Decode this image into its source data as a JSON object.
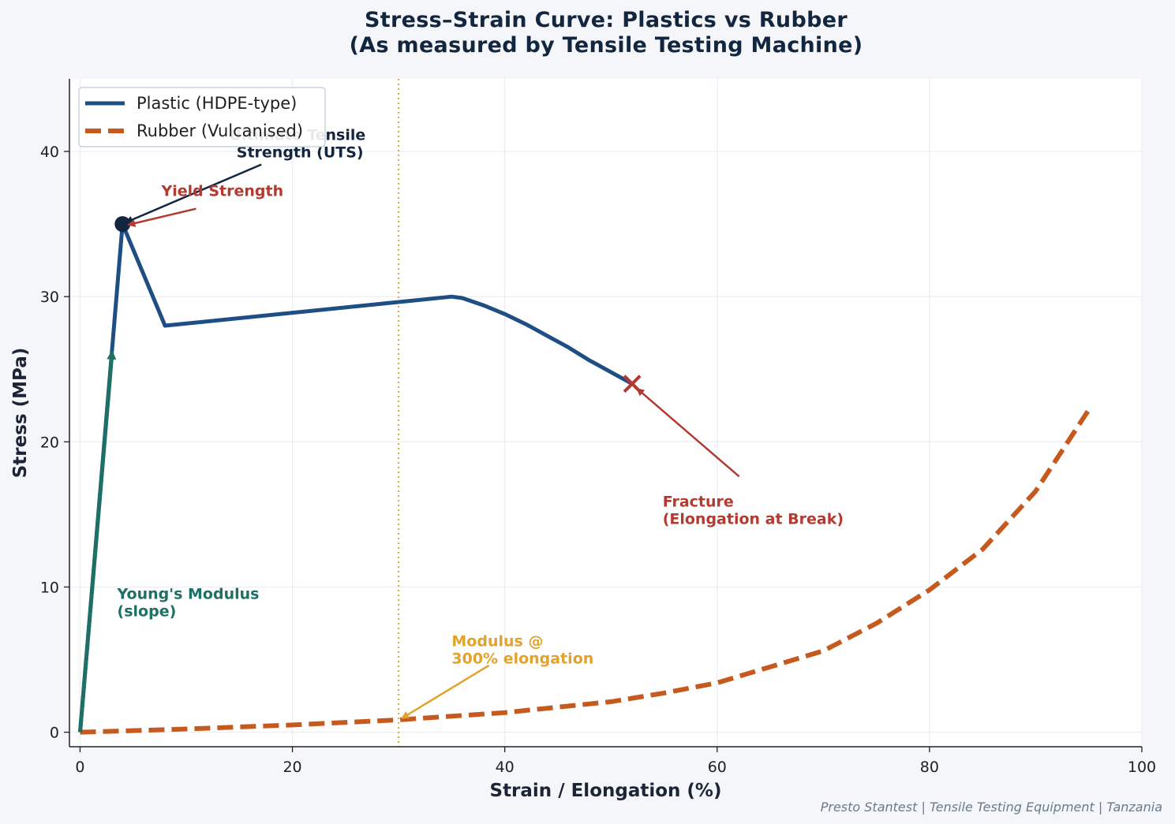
{
  "page": {
    "title_line1": "Stress–Strain Curve: Plastics vs Rubber",
    "title_line2": "(As measured by Tensile Testing Machine)",
    "footer": "Presto Stantest | Tensile Testing Equipment | Tanzania"
  },
  "chart_data": {
    "type": "line",
    "title": "Stress–Strain Curve: Plastics vs Rubber\n(As measured by Tensile Testing Machine)",
    "xlabel": "Strain / Elongation (%)",
    "ylabel": "Stress (MPa)",
    "xlim": [
      -1,
      100
    ],
    "ylim": [
      -1,
      45
    ],
    "xticks": [
      0,
      20,
      40,
      60,
      80,
      100
    ],
    "yticks": [
      0,
      10,
      20,
      30,
      40
    ],
    "grid": true,
    "legend_position": "top-left",
    "colors": {
      "plastic": "#1f4e85",
      "rubber": "#c65a1e",
      "youngs": "#1e7065",
      "yield": "#b23a30",
      "uts": "#13263f",
      "modulus300": "#e1a32c"
    },
    "series": [
      {
        "name": "Plastic (HDPE-type)",
        "style": "solid",
        "x": [
          0,
          4,
          8,
          35,
          36,
          38,
          40,
          42,
          44,
          46,
          48,
          50,
          52
        ],
        "y": [
          0,
          35,
          28,
          30,
          29.9,
          29.4,
          28.8,
          28.1,
          27.3,
          26.5,
          25.6,
          24.8,
          24
        ]
      },
      {
        "name": "Rubber (Vulcanised)",
        "style": "dashed",
        "x": [
          0,
          10,
          20,
          30,
          40,
          50,
          55,
          60,
          65,
          70,
          75,
          80,
          85,
          90,
          95
        ],
        "y": [
          0,
          0.22,
          0.5,
          0.85,
          1.35,
          2.1,
          2.7,
          3.4,
          4.5,
          5.6,
          7.5,
          9.8,
          12.6,
          16.6,
          22.2
        ]
      }
    ],
    "youngs_segment": {
      "x": [
        0,
        3
      ],
      "y": [
        0,
        26
      ]
    },
    "yield_point": {
      "x": 4,
      "y": 35
    },
    "fracture_point": {
      "x": 52,
      "y": 24
    },
    "reference_line_x": 30,
    "annotations": {
      "uts_line1": "Ultimate Tensile",
      "uts_line2": "Strength (UTS)",
      "yield": "Yield Strength",
      "fracture_line1": "Fracture",
      "fracture_line2": "(Elongation at Break)",
      "youngs_line1": "Young's Modulus",
      "youngs_line2": "(slope)",
      "modulus_line1": "Modulus @",
      "modulus_line2": "300% elongation"
    },
    "annotation_anchors": {
      "uts_text": [
        17,
        39.7
      ],
      "yield_text": [
        11,
        36.6
      ],
      "fracture_text": [
        62,
        17.5
      ],
      "modulus_text": [
        38.5,
        4.6
      ],
      "modulus_target": [
        30,
        0.85
      ]
    }
  }
}
